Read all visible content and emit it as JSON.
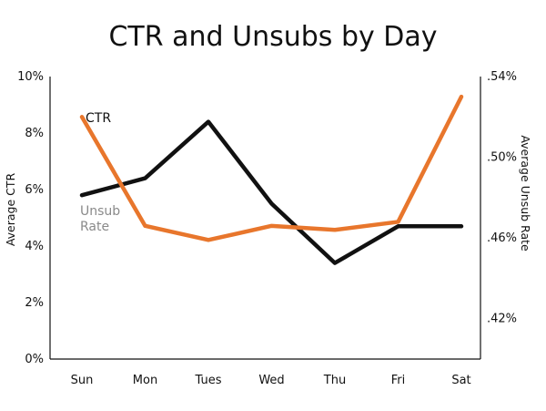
{
  "chart_data": {
    "type": "line",
    "title": "CTR and Unsubs by Day",
    "categories": [
      "Sun",
      "Mon",
      "Tues",
      "Wed",
      "Thu",
      "Fri",
      "Sat"
    ],
    "y_left": {
      "label": "Average CTR",
      "ylim": [
        0,
        10
      ],
      "ticks": [
        0,
        2,
        4,
        6,
        8,
        10
      ],
      "tick_labels": [
        "0%",
        "2%",
        "4%",
        "6%",
        "8%",
        "10%"
      ]
    },
    "y_right": {
      "label": "Average Unsub Rate",
      "ylim": [
        0.4,
        0.54
      ],
      "ticks": [
        0.42,
        0.46,
        0.5,
        0.54
      ],
      "tick_labels": [
        ".42%",
        ".46%",
        ".50%",
        ".54%"
      ]
    },
    "series": [
      {
        "name": "CTR",
        "label_lines": [
          "CTR"
        ],
        "axis": "left",
        "color": "#111111",
        "values": [
          5.8,
          6.4,
          8.4,
          5.5,
          3.4,
          4.7,
          4.7
        ]
      },
      {
        "name": "Unsub Rate",
        "label_lines": [
          "Unsub",
          "Rate"
        ],
        "axis": "right",
        "color": "#E8762C",
        "values": [
          0.52,
          0.466,
          0.459,
          0.466,
          0.464,
          0.468,
          0.53
        ]
      }
    ],
    "grid": false,
    "legend": "inline labels"
  }
}
